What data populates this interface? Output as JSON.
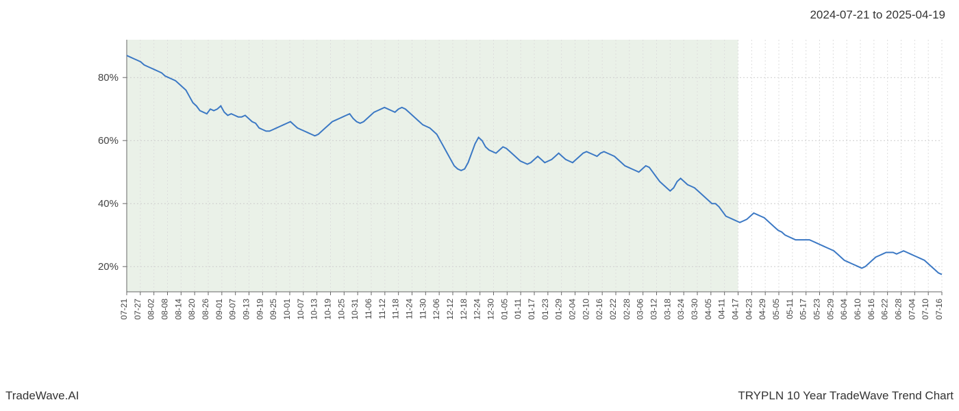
{
  "header": {
    "date_range": "2024-07-21 to 2025-04-19"
  },
  "footer": {
    "brand": "TradeWave.AI",
    "title": "TRYPLN 10 Year TradeWave Trend Chart"
  },
  "chart": {
    "type": "line",
    "background_color": "#ffffff",
    "shade_color": "#d8e6d5",
    "shade_opacity": 0.55,
    "line_color": "#3b78c4",
    "line_width": 2,
    "grid_color": "#cccccc",
    "grid_color_x": "#dddddd",
    "axis_color": "#666666",
    "label_color": "#444444",
    "ylim": [
      12,
      92
    ],
    "y_ticks": [
      20,
      40,
      60,
      80
    ],
    "y_tick_labels": [
      "20%",
      "40%",
      "60%",
      "80%"
    ],
    "x_labels": [
      "07-21",
      "07-27",
      "08-02",
      "08-08",
      "08-14",
      "08-20",
      "08-26",
      "09-01",
      "09-07",
      "09-13",
      "09-19",
      "09-25",
      "10-01",
      "10-07",
      "10-13",
      "10-19",
      "10-25",
      "10-31",
      "11-06",
      "11-12",
      "11-18",
      "11-24",
      "11-30",
      "12-06",
      "12-12",
      "12-18",
      "12-24",
      "12-30",
      "01-05",
      "01-11",
      "01-17",
      "01-23",
      "01-29",
      "02-04",
      "02-10",
      "02-16",
      "02-22",
      "02-28",
      "03-06",
      "03-12",
      "03-18",
      "03-24",
      "03-30",
      "04-05",
      "04-11",
      "04-17",
      "04-23",
      "04-29",
      "05-05",
      "05-11",
      "05-17",
      "05-23",
      "05-29",
      "06-04",
      "06-10",
      "06-16",
      "06-22",
      "06-28",
      "07-04",
      "07-10",
      "07-16"
    ],
    "shade_x_start": 0,
    "shade_x_end": 45,
    "values": [
      87,
      86.5,
      86,
      85.5,
      85,
      84,
      83.5,
      83,
      82.5,
      82,
      81.5,
      80.5,
      80,
      79.5,
      79,
      78,
      77,
      76,
      74,
      72,
      71,
      69.5,
      69,
      68.5,
      70,
      69.5,
      70,
      71,
      69,
      68,
      68.5,
      68,
      67.5,
      67.5,
      68,
      67,
      66,
      65.5,
      64,
      63.5,
      63,
      63,
      63.5,
      64,
      64.5,
      65,
      65.5,
      66,
      65,
      64,
      63.5,
      63,
      62.5,
      62,
      61.5,
      62,
      63,
      64,
      65,
      66,
      66.5,
      67,
      67.5,
      68,
      68.5,
      67,
      66,
      65.5,
      66,
      67,
      68,
      69,
      69.5,
      70,
      70.5,
      70,
      69.5,
      69,
      70,
      70.5,
      70,
      69,
      68,
      67,
      66,
      65,
      64.5,
      64,
      63,
      62,
      60,
      58,
      56,
      54,
      52,
      51,
      50.5,
      51,
      53,
      56,
      59,
      61,
      60,
      58,
      57,
      56.5,
      56,
      57,
      58,
      57.5,
      56.5,
      55.5,
      54.5,
      53.5,
      53,
      52.5,
      53,
      54,
      55,
      54,
      53,
      53.5,
      54,
      55,
      56,
      55,
      54,
      53.5,
      53,
      54,
      55,
      56,
      56.5,
      56,
      55.5,
      55,
      56,
      56.5,
      56,
      55.5,
      55,
      54,
      53,
      52,
      51.5,
      51,
      50.5,
      50,
      51,
      52,
      51.5,
      50,
      48.5,
      47,
      46,
      45,
      44,
      45,
      47,
      48,
      47,
      46,
      45.5,
      45,
      44,
      43,
      42,
      41,
      40,
      40,
      39,
      37.5,
      36,
      35.5,
      35,
      34.5,
      34,
      34.5,
      35,
      36,
      37,
      36.5,
      36,
      35.5,
      34.5,
      33.5,
      32.5,
      31.5,
      31,
      30,
      29.5,
      29,
      28.5,
      28.5,
      28.5,
      28.5,
      28.5,
      28,
      27.5,
      27,
      26.5,
      26,
      25.5,
      25,
      24,
      23,
      22,
      21.5,
      21,
      20.5,
      20,
      19.5,
      20,
      21,
      22,
      23,
      23.5,
      24,
      24.5,
      24.5,
      24.5,
      24,
      24.5,
      25,
      24.5,
      24,
      23.5,
      23,
      22.5,
      22,
      21,
      20,
      19,
      18,
      17.5
    ]
  }
}
